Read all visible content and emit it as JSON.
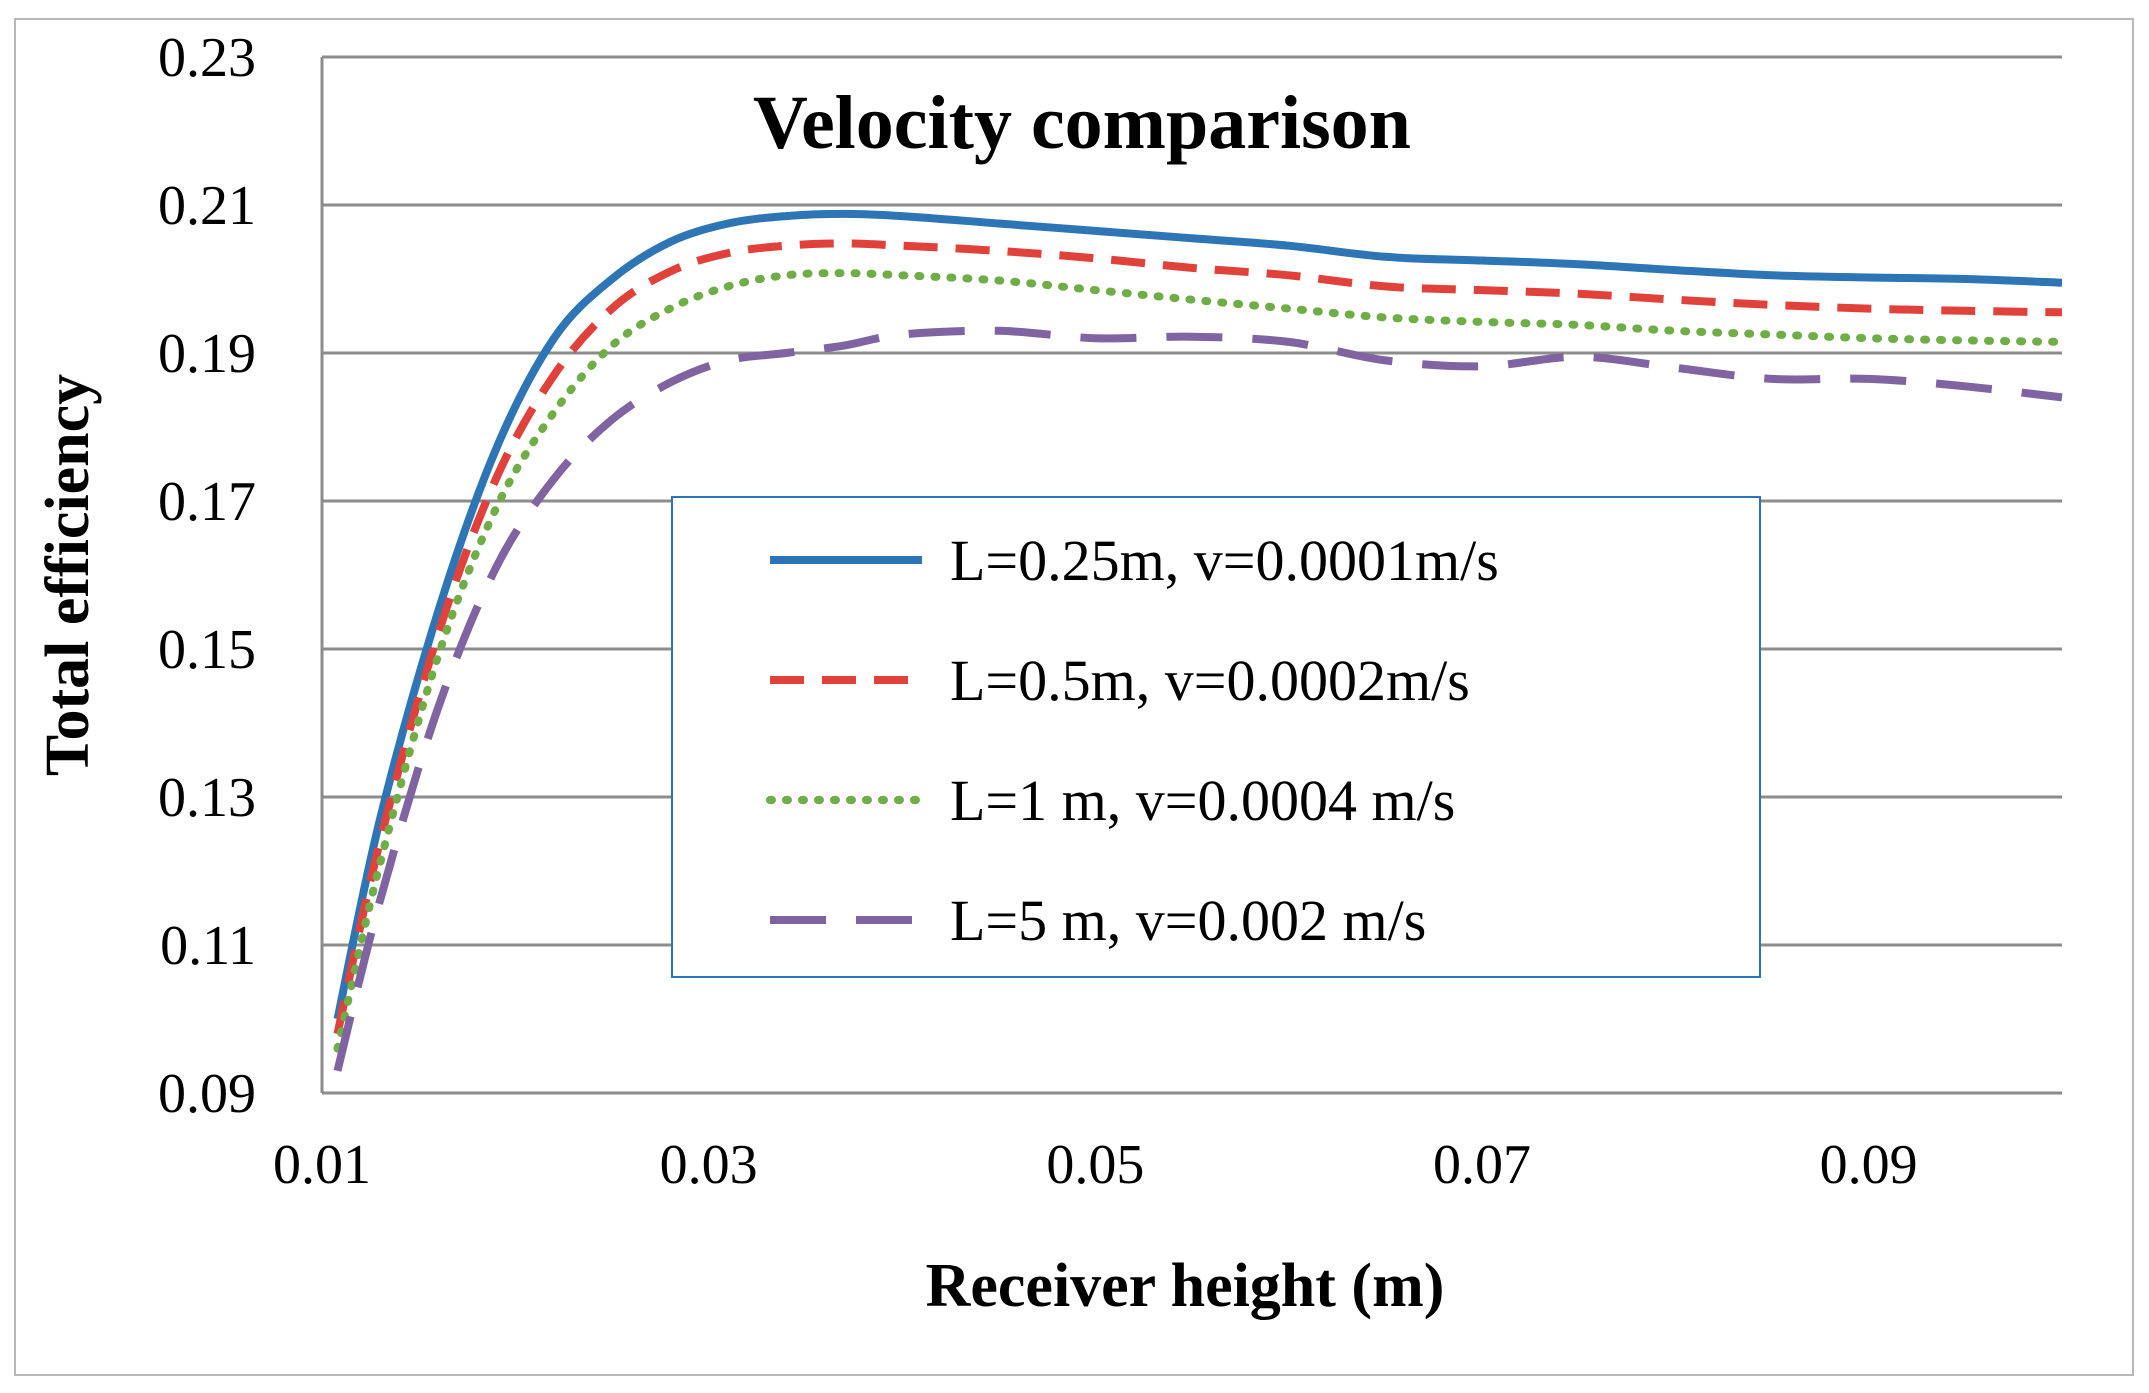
{
  "chart_data": {
    "type": "line",
    "title": "Velocity comparison",
    "xlabel": "Receiver height (m)",
    "ylabel": "Total efficiency",
    "xlim": [
      0.01,
      0.1
    ],
    "ylim": [
      0.09,
      0.23
    ],
    "xticks": [
      "0.01",
      "0.03",
      "0.05",
      "0.07",
      "0.09"
    ],
    "yticks": [
      "0.09",
      "0.11",
      "0.13",
      "0.15",
      "0.17",
      "0.19",
      "0.21",
      "0.23"
    ],
    "grid": "horizontal",
    "legend_position": "center",
    "series": [
      {
        "name": "L=0.25m, v=0.0001m/s",
        "color": "#2e75b6",
        "style": "solid",
        "x": [
          0.0108,
          0.013,
          0.016,
          0.019,
          0.022,
          0.025,
          0.028,
          0.031,
          0.034,
          0.037,
          0.04,
          0.045,
          0.05,
          0.055,
          0.06,
          0.065,
          0.07,
          0.075,
          0.08,
          0.085,
          0.09,
          0.095,
          0.1
        ],
        "values": [
          0.1,
          0.127,
          0.155,
          0.177,
          0.192,
          0.2,
          0.205,
          0.2075,
          0.2085,
          0.2088,
          0.2085,
          0.2075,
          0.2065,
          0.2055,
          0.2045,
          0.203,
          0.2025,
          0.202,
          0.2012,
          0.2005,
          0.2002,
          0.2,
          0.1995
        ]
      },
      {
        "name": "L=0.5m, v=0.0002m/s",
        "color": "#e0413a",
        "style": "dashed",
        "x": [
          0.0108,
          0.013,
          0.016,
          0.019,
          0.022,
          0.025,
          0.028,
          0.031,
          0.034,
          0.037,
          0.04,
          0.045,
          0.05,
          0.055,
          0.06,
          0.065,
          0.07,
          0.075,
          0.08,
          0.085,
          0.09,
          0.095,
          0.1
        ],
        "values": [
          0.098,
          0.124,
          0.152,
          0.173,
          0.187,
          0.196,
          0.201,
          0.2035,
          0.2045,
          0.2048,
          0.2045,
          0.2038,
          0.2028,
          0.2015,
          0.2005,
          0.199,
          0.1985,
          0.198,
          0.1972,
          0.1965,
          0.196,
          0.1957,
          0.1955
        ]
      },
      {
        "name": "L=1 m, v=0.0004 m/s",
        "color": "#70ad47",
        "style": "dotted",
        "x": [
          0.0108,
          0.013,
          0.016,
          0.019,
          0.022,
          0.025,
          0.028,
          0.031,
          0.034,
          0.037,
          0.04,
          0.045,
          0.05,
          0.055,
          0.06,
          0.065,
          0.07,
          0.075,
          0.08,
          0.085,
          0.09,
          0.095,
          0.1
        ],
        "values": [
          0.096,
          0.121,
          0.149,
          0.169,
          0.182,
          0.191,
          0.196,
          0.199,
          0.2005,
          0.2008,
          0.2005,
          0.1998,
          0.1985,
          0.1972,
          0.196,
          0.1948,
          0.1942,
          0.1938,
          0.193,
          0.1925,
          0.192,
          0.1917,
          0.1915
        ]
      },
      {
        "name": "L=5 m, v=0.002 m/s",
        "color": "#8064a2",
        "style": "longdash",
        "x": [
          0.0108,
          0.013,
          0.016,
          0.019,
          0.022,
          0.025,
          0.028,
          0.031,
          0.034,
          0.037,
          0.04,
          0.045,
          0.05,
          0.055,
          0.06,
          0.065,
          0.07,
          0.075,
          0.08,
          0.085,
          0.09,
          0.095,
          0.1
        ],
        "values": [
          0.093,
          0.116,
          0.142,
          0.161,
          0.173,
          0.181,
          0.186,
          0.189,
          0.19,
          0.191,
          0.1925,
          0.193,
          0.192,
          0.1922,
          0.1915,
          0.189,
          0.1882,
          0.1895,
          0.188,
          0.1865,
          0.1865,
          0.1855,
          0.184
        ]
      }
    ]
  }
}
